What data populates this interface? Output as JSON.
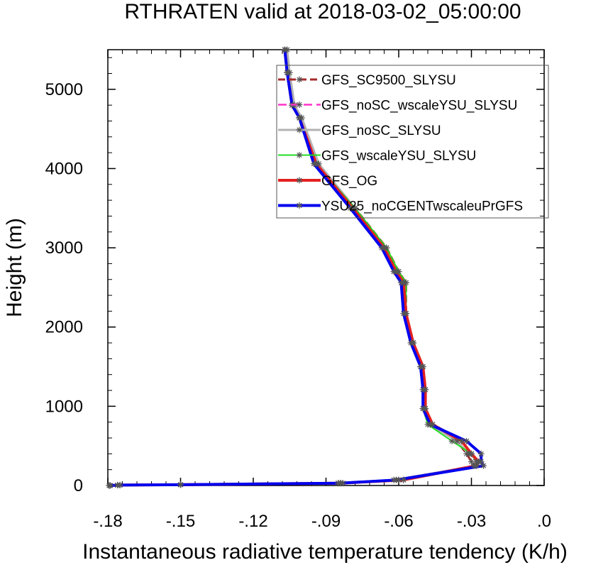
{
  "chart_data": {
    "type": "line",
    "title": "RTHRATEN valid at 2018-03-02_05:00:00",
    "xlabel": "Instantaneous radiative temperature tendency (K/h)",
    "ylabel": "Height (m)",
    "xlim": [
      -0.18,
      0.0
    ],
    "ylim": [
      0,
      5500
    ],
    "xticks": [
      -0.18,
      -0.15,
      -0.12,
      -0.09,
      -0.06,
      -0.03,
      0.0
    ],
    "xtick_labels": [
      "-.18",
      "-.15",
      "-.12",
      "-.09",
      "-.06",
      "-.03",
      ".0"
    ],
    "yticks": [
      0,
      1000,
      2000,
      3000,
      4000,
      5000
    ],
    "ytick_labels": [
      "0",
      "1000",
      "2000",
      "3000",
      "4000",
      "5000"
    ],
    "legend_position": "top-right",
    "series": [
      {
        "name": "GFS_SC9500_SLYSU",
        "color": "#a52a2a",
        "dash": "10,5",
        "width": 3,
        "x": [
          -0.1795,
          -0.175,
          -0.15,
          -0.083,
          -0.058,
          -0.029,
          -0.03,
          -0.032,
          -0.036,
          -0.047,
          -0.05,
          -0.05,
          -0.051,
          -0.054,
          -0.057,
          -0.057,
          -0.06,
          -0.065,
          -0.078,
          -0.094,
          -0.101,
          -0.104,
          -0.106,
          -0.107
        ],
        "y": [
          0,
          5,
          10,
          30,
          70,
          250,
          300,
          400,
          560,
          770,
          970,
          1210,
          1500,
          1800,
          2170,
          2560,
          2700,
          3000,
          3500,
          4060,
          4640,
          4800,
          5210,
          5500
        ]
      },
      {
        "name": "GFS_noSC_wscaleYSU_SLYSU",
        "color": "#ff33cc",
        "dash": "12,6",
        "width": 2.5,
        "x": [
          -0.179,
          -0.176,
          -0.15,
          -0.084,
          -0.06,
          -0.029,
          -0.028,
          -0.03,
          -0.034,
          -0.046,
          -0.049,
          -0.049,
          -0.05,
          -0.054,
          -0.057,
          -0.058,
          -0.061,
          -0.066,
          -0.079,
          -0.094,
          -0.101,
          -0.104,
          -0.106,
          -0.107
        ],
        "y": [
          0,
          5,
          10,
          30,
          70,
          250,
          300,
          400,
          560,
          770,
          970,
          1210,
          1500,
          1800,
          2170,
          2560,
          2700,
          3000,
          3500,
          4060,
          4640,
          4800,
          5210,
          5500
        ]
      },
      {
        "name": "GFS_noSC_SLYSU",
        "color": "#b3b3b3",
        "dash": "",
        "width": 3,
        "x": [
          -0.179,
          -0.176,
          -0.15,
          -0.085,
          -0.062,
          -0.028,
          -0.027,
          -0.031,
          -0.036,
          -0.047,
          -0.049,
          -0.049,
          -0.05,
          -0.054,
          -0.057,
          -0.058,
          -0.062,
          -0.066,
          -0.078,
          -0.093,
          -0.1,
          -0.103,
          -0.105,
          -0.106
        ],
        "y": [
          0,
          5,
          10,
          30,
          70,
          250,
          300,
          400,
          560,
          770,
          970,
          1210,
          1500,
          1800,
          2170,
          2560,
          2700,
          3000,
          3500,
          4060,
          4640,
          4800,
          5210,
          5500
        ]
      },
      {
        "name": "GFS_wscaleYSU_SLYSU",
        "color": "#22dd22",
        "dash": "",
        "width": 2,
        "x": [
          -0.179,
          -0.176,
          -0.15,
          -0.085,
          -0.06,
          -0.028,
          -0.028,
          -0.03,
          -0.038,
          -0.048,
          -0.05,
          -0.05,
          -0.051,
          -0.054,
          -0.057,
          -0.057,
          -0.06,
          -0.065,
          -0.078,
          -0.094,
          -0.101,
          -0.104,
          -0.106,
          -0.107
        ],
        "y": [
          0,
          5,
          10,
          30,
          70,
          250,
          300,
          400,
          560,
          770,
          970,
          1210,
          1500,
          1800,
          2170,
          2560,
          2700,
          3000,
          3500,
          4060,
          4640,
          4800,
          5210,
          5500
        ]
      },
      {
        "name": "GFS_OG",
        "color": "#e32020",
        "dash": "",
        "width": 4,
        "x": [
          -0.179,
          -0.175,
          -0.15,
          -0.084,
          -0.058,
          -0.028,
          -0.027,
          -0.03,
          -0.034,
          -0.046,
          -0.049,
          -0.049,
          -0.05,
          -0.054,
          -0.057,
          -0.058,
          -0.061,
          -0.066,
          -0.079,
          -0.094,
          -0.101,
          -0.104,
          -0.106,
          -0.107
        ],
        "y": [
          0,
          5,
          10,
          30,
          70,
          250,
          300,
          400,
          560,
          770,
          970,
          1210,
          1500,
          1800,
          2170,
          2560,
          2700,
          3000,
          3500,
          4060,
          4640,
          4800,
          5210,
          5500
        ]
      },
      {
        "name": "YSU25_noCGENTwscaleuPrGFS",
        "color": "#0000ee",
        "dash": "",
        "width": 4,
        "x": [
          -0.179,
          -0.175,
          -0.15,
          -0.084,
          -0.061,
          -0.025,
          -0.026,
          -0.026,
          -0.032,
          -0.047,
          -0.05,
          -0.05,
          -0.051,
          -0.055,
          -0.058,
          -0.059,
          -0.062,
          -0.067,
          -0.08,
          -0.095,
          -0.101,
          -0.104,
          -0.106,
          -0.107
        ],
        "y": [
          0,
          5,
          10,
          30,
          70,
          250,
          300,
          400,
          560,
          770,
          970,
          1210,
          1500,
          1800,
          2170,
          2560,
          2700,
          3000,
          3500,
          4060,
          4640,
          4800,
          5210,
          5500
        ]
      }
    ]
  }
}
